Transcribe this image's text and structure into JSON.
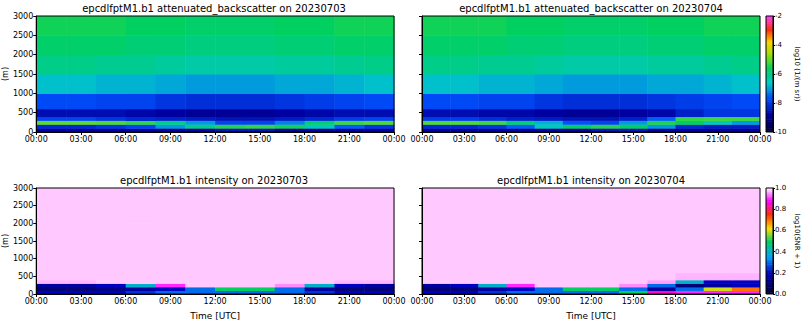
{
  "chart_data": [
    {
      "type": "heatmap",
      "title": "epcdlfptM1.b1 attenuated_backscatter on 20230703",
      "ylabel": "(m)",
      "x_edges": [
        0,
        2,
        4,
        6,
        8,
        10,
        12,
        14,
        16,
        18,
        20,
        22,
        24
      ],
      "y_edges": [
        0,
        100,
        200,
        300,
        400,
        600,
        1000,
        1500,
        2000,
        2500,
        3000
      ],
      "cells": [
        [
          -8.8,
          -8.8,
          -8.8,
          -8.8,
          -8.8,
          -8.8,
          -8.5,
          -8.5,
          -8.8,
          -8.8,
          -8.8,
          -8.8
        ],
        [
          -8.2,
          -8.2,
          -8.0,
          -7.8,
          -7.0,
          -6.0,
          -5.4,
          -5.3,
          -5.5,
          -6.5,
          -7.5,
          -8.0
        ],
        [
          -5.0,
          -5.0,
          -5.1,
          -5.3,
          -6.0,
          -7.0,
          -7.8,
          -7.8,
          -7.2,
          -5.8,
          -5.2,
          -5.1
        ],
        [
          -7.8,
          -7.8,
          -8.0,
          -8.2,
          -8.3,
          -8.4,
          -8.5,
          -8.5,
          -8.4,
          -8.2,
          -7.9,
          -7.8
        ],
        [
          -8.6,
          -8.6,
          -8.6,
          -8.7,
          -8.8,
          -8.9,
          -8.9,
          -8.9,
          -8.8,
          -8.7,
          -8.6,
          -8.6
        ],
        [
          -7.7,
          -7.7,
          -7.8,
          -7.8,
          -8.0,
          -8.1,
          -8.1,
          -8.1,
          -8.0,
          -7.9,
          -7.8,
          -7.7
        ],
        [
          -6.7,
          -6.7,
          -6.8,
          -6.8,
          -6.9,
          -7.0,
          -7.0,
          -7.0,
          -6.9,
          -6.9,
          -6.8,
          -6.7
        ],
        [
          -6.0,
          -6.0,
          -6.1,
          -6.1,
          -6.2,
          -6.3,
          -6.3,
          -6.3,
          -6.2,
          -6.2,
          -6.1,
          -6.0
        ],
        [
          -5.7,
          -5.7,
          -5.7,
          -5.8,
          -5.8,
          -5.9,
          -5.9,
          -5.9,
          -5.8,
          -5.8,
          -5.7,
          -5.7
        ],
        [
          -5.5,
          -5.5,
          -5.5,
          -5.6,
          -5.6,
          -5.7,
          -5.7,
          -5.7,
          -5.6,
          -5.6,
          -5.5,
          -5.5
        ]
      ],
      "color_range": [
        -10,
        -2
      ],
      "xlim": [
        0,
        24
      ],
      "xticks": [
        {
          "value": 0,
          "label": "00:00"
        },
        {
          "value": 3,
          "label": "03:00"
        },
        {
          "value": 6,
          "label": "06:00"
        },
        {
          "value": 9,
          "label": "09:00"
        },
        {
          "value": 12,
          "label": "12:00"
        },
        {
          "value": 15,
          "label": "15:00"
        },
        {
          "value": 18,
          "label": "18:00"
        },
        {
          "value": 21,
          "label": "21:00"
        },
        {
          "value": 24,
          "label": "00:00"
        }
      ],
      "ylim": [
        0,
        3000
      ],
      "yticks": [
        0,
        500,
        1000,
        1500,
        2000,
        2500,
        3000
      ],
      "grid": false
    },
    {
      "type": "heatmap",
      "title": "epcdlfptM1.b1 attenuated_backscatter on 20230704",
      "x_edges": [
        0,
        2,
        4,
        6,
        8,
        10,
        12,
        14,
        16,
        18,
        20,
        22,
        24
      ],
      "y_edges": [
        0,
        100,
        200,
        300,
        400,
        600,
        1000,
        1500,
        2000,
        2500,
        3000
      ],
      "cells": [
        [
          -8.8,
          -8.8,
          -8.8,
          -8.8,
          -8.8,
          -8.8,
          -8.5,
          -8.5,
          -8.8,
          -8.8,
          -8.8,
          -8.8
        ],
        [
          -8.2,
          -8.2,
          -8.0,
          -7.5,
          -6.5,
          -5.6,
          -5.4,
          -5.6,
          -7.0,
          -8.2,
          -8.4,
          -8.4
        ],
        [
          -5.1,
          -5.1,
          -5.2,
          -5.8,
          -6.8,
          -7.6,
          -7.8,
          -7.0,
          -5.4,
          -5.6,
          -6.5,
          -7.0
        ],
        [
          -7.9,
          -7.9,
          -8.1,
          -8.3,
          -8.4,
          -8.5,
          -8.5,
          -8.3,
          -7.5,
          -5.3,
          -5.2,
          -5.2
        ],
        [
          -8.6,
          -8.6,
          -8.7,
          -8.7,
          -8.8,
          -8.9,
          -8.9,
          -8.8,
          -8.7,
          -8.3,
          -8.0,
          -8.0
        ],
        [
          -7.7,
          -7.7,
          -7.8,
          -7.8,
          -8.0,
          -8.1,
          -8.1,
          -8.1,
          -8.0,
          -7.9,
          -7.8,
          -7.7
        ],
        [
          -6.7,
          -6.7,
          -6.8,
          -6.8,
          -6.9,
          -7.0,
          -7.0,
          -7.0,
          -6.9,
          -6.9,
          -6.8,
          -6.7
        ],
        [
          -6.0,
          -6.0,
          -6.1,
          -6.1,
          -6.2,
          -6.3,
          -6.3,
          -6.3,
          -6.2,
          -6.2,
          -6.1,
          -6.0
        ],
        [
          -5.7,
          -5.7,
          -5.7,
          -5.8,
          -5.8,
          -5.9,
          -5.9,
          -5.9,
          -5.8,
          -5.8,
          -5.7,
          -5.7
        ],
        [
          -5.5,
          -5.5,
          -5.5,
          -5.6,
          -5.6,
          -5.7,
          -5.7,
          -5.7,
          -5.6,
          -5.6,
          -5.5,
          -5.5
        ]
      ],
      "color_range": [
        -10,
        -2
      ],
      "colorbar_ticks": [
        -10,
        -8,
        -6,
        -4,
        -2
      ],
      "colorbar_label": "log10 (1/(m sr))",
      "xlim": [
        0,
        24
      ],
      "xticks": [
        {
          "value": 0,
          "label": "00:00"
        },
        {
          "value": 3,
          "label": "03:00"
        },
        {
          "value": 6,
          "label": "06:00"
        },
        {
          "value": 9,
          "label": "09:00"
        },
        {
          "value": 12,
          "label": "12:00"
        },
        {
          "value": 15,
          "label": "15:00"
        },
        {
          "value": 18,
          "label": "18:00"
        },
        {
          "value": 21,
          "label": "21:00"
        },
        {
          "value": 24,
          "label": "00:00"
        }
      ],
      "ylim": [
        0,
        3000
      ],
      "yticks": [
        0,
        500,
        1000,
        1500,
        2000,
        2500,
        3000
      ],
      "grid": false,
      "tick_labels": "x"
    },
    {
      "type": "heatmap",
      "title": "epcdlfptM1.b1 intensity on 20230703",
      "xlabel": "Time [UTC]",
      "ylabel": "(m)",
      "x_edges": [
        0,
        2,
        4,
        6,
        8,
        10,
        12,
        14,
        16,
        18,
        20,
        22,
        24
      ],
      "y_edges": [
        0,
        100,
        200,
        300,
        400,
        600,
        1000,
        1500,
        2000,
        2500,
        3000
      ],
      "cells": [
        [
          0.2,
          0.2,
          0.2,
          0.25,
          0.3,
          0.3,
          0.3,
          0.3,
          0.3,
          0.25,
          0.2,
          0.2
        ],
        [
          0.1,
          0.1,
          0.12,
          0.15,
          0.2,
          0.3,
          0.5,
          0.5,
          0.3,
          0.15,
          0.1,
          0.1
        ],
        [
          0.15,
          0.15,
          0.2,
          0.4,
          0.9,
          0.98,
          0.98,
          0.98,
          0.95,
          0.4,
          0.2,
          0.15
        ],
        [
          0.97,
          0.97,
          0.98,
          0.98,
          0.98,
          0.98,
          0.98,
          0.98,
          0.98,
          0.98,
          0.97,
          0.97
        ],
        [
          0.98,
          0.98,
          0.98,
          0.98,
          0.98,
          0.98,
          0.98,
          0.98,
          0.98,
          0.98,
          0.98,
          0.98
        ],
        [
          0.98,
          0.98,
          0.98,
          0.98,
          0.98,
          0.98,
          0.98,
          0.98,
          0.98,
          0.98,
          0.98,
          0.98
        ],
        [
          0.98,
          0.98,
          0.98,
          0.98,
          0.98,
          0.98,
          0.98,
          0.98,
          0.98,
          0.98,
          0.98,
          0.98
        ],
        [
          0.98,
          0.98,
          0.98,
          0.98,
          0.98,
          0.98,
          0.98,
          0.98,
          0.98,
          0.98,
          0.98,
          0.98
        ],
        [
          0.98,
          0.98,
          0.98,
          0.98,
          0.98,
          0.98,
          0.98,
          0.98,
          0.98,
          0.98,
          0.98,
          0.98
        ],
        [
          0.98,
          0.98,
          0.98,
          0.98,
          0.98,
          0.98,
          0.98,
          0.98,
          0.98,
          0.98,
          0.98,
          0.98
        ]
      ],
      "color_range": [
        0,
        1
      ],
      "xlim": [
        0,
        24
      ],
      "xticks": [
        {
          "value": 0,
          "label": "00:00"
        },
        {
          "value": 3,
          "label": "03:00"
        },
        {
          "value": 6,
          "label": "06:00"
        },
        {
          "value": 9,
          "label": "09:00"
        },
        {
          "value": 12,
          "label": "12:00"
        },
        {
          "value": 15,
          "label": "15:00"
        },
        {
          "value": 18,
          "label": "18:00"
        },
        {
          "value": 21,
          "label": "21:00"
        },
        {
          "value": 24,
          "label": "00:00"
        }
      ],
      "ylim": [
        0,
        3000
      ],
      "yticks": [
        0,
        500,
        1000,
        1500,
        2000,
        2500,
        3000
      ],
      "grid": false
    },
    {
      "type": "heatmap",
      "title": "epcdlfptM1.b1 intensity on 20230704",
      "xlabel": "Time [UTC]",
      "x_edges": [
        0,
        2,
        4,
        6,
        8,
        10,
        12,
        14,
        16,
        18,
        20,
        22,
        24
      ],
      "y_edges": [
        0,
        100,
        200,
        300,
        400,
        600,
        1000,
        1500,
        2000,
        2500,
        3000
      ],
      "cells": [
        [
          0.2,
          0.2,
          0.25,
          0.3,
          0.3,
          0.3,
          0.3,
          0.5,
          0.85,
          0.9,
          0.9,
          0.9
        ],
        [
          0.1,
          0.1,
          0.15,
          0.2,
          0.3,
          0.5,
          0.5,
          0.3,
          0.15,
          0.3,
          0.6,
          0.7
        ],
        [
          0.15,
          0.2,
          0.4,
          0.9,
          0.98,
          0.98,
          0.98,
          0.95,
          0.3,
          0.1,
          0.15,
          0.2
        ],
        [
          0.98,
          0.98,
          0.98,
          0.98,
          0.98,
          0.98,
          0.98,
          0.98,
          0.96,
          0.4,
          0.2,
          0.2
        ],
        [
          0.98,
          0.98,
          0.98,
          0.98,
          0.98,
          0.98,
          0.98,
          0.98,
          0.98,
          0.97,
          0.97,
          0.97
        ],
        [
          0.98,
          0.98,
          0.98,
          0.98,
          0.98,
          0.98,
          0.98,
          0.98,
          0.98,
          0.98,
          0.98,
          0.98
        ],
        [
          0.98,
          0.98,
          0.98,
          0.98,
          0.98,
          0.98,
          0.98,
          0.98,
          0.98,
          0.98,
          0.98,
          0.98
        ],
        [
          0.98,
          0.98,
          0.98,
          0.98,
          0.98,
          0.98,
          0.98,
          0.98,
          0.98,
          0.98,
          0.98,
          0.98
        ],
        [
          0.98,
          0.98,
          0.98,
          0.98,
          0.98,
          0.98,
          0.98,
          0.98,
          0.98,
          0.98,
          0.98,
          0.98
        ],
        [
          0.98,
          0.98,
          0.98,
          0.98,
          0.98,
          0.98,
          0.98,
          0.98,
          0.98,
          0.98,
          0.98,
          0.98
        ]
      ],
      "color_range": [
        0,
        1
      ],
      "colorbar_ticks": [
        {
          "value": 0,
          "label": "0.0"
        },
        0.2,
        0.4,
        0.6,
        0.8,
        {
          "value": 1,
          "label": "1.0"
        }
      ],
      "colorbar_label": "log10(SNR + 1)",
      "xlim": [
        0,
        24
      ],
      "xticks": [
        {
          "value": 0,
          "label": "00:00"
        },
        {
          "value": 3,
          "label": "03:00"
        },
        {
          "value": 6,
          "label": "06:00"
        },
        {
          "value": 9,
          "label": "09:00"
        },
        {
          "value": 12,
          "label": "12:00"
        },
        {
          "value": 15,
          "label": "15:00"
        },
        {
          "value": 18,
          "label": "18:00"
        },
        {
          "value": 21,
          "label": "21:00"
        },
        {
          "value": 24,
          "label": "00:00"
        }
      ],
      "ylim": [
        0,
        3000
      ],
      "yticks": [
        0,
        500,
        1000,
        1500,
        2000,
        2500,
        3000
      ],
      "grid": false,
      "tick_labels": "x"
    }
  ]
}
